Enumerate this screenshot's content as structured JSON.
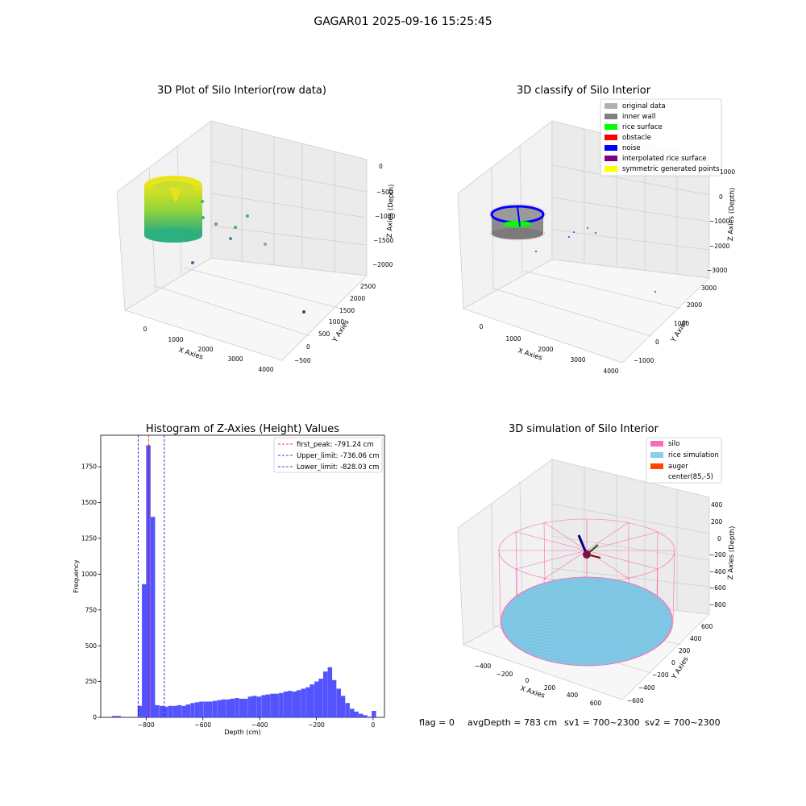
{
  "figure_title": "GAGAR01 2025-09-16 15:25:45",
  "footer": {
    "flag": "flag = 0",
    "avg_depth": "avgDepth = 783 cm",
    "sv1": "sv1 = 700~2300",
    "sv2": "sv2 = 700~2300"
  },
  "colors": {
    "histogram_bar": "#4b4bff",
    "first_peak_line": "#ff0000",
    "limit_line": "#0000cc",
    "silo": "#ff69b4",
    "rice": "#87ceeb",
    "auger": "#ff4500",
    "wall_gray": "#888888",
    "rice_green": "#00ff00",
    "noise_blue": "#0000ff",
    "interp_purple": "#800080",
    "sym_yellow": "#ffff00"
  },
  "chart_data": [
    {
      "type": "scatter3d",
      "title": "3D Plot of Silo Interior(row data)",
      "xlabel": "X Axies",
      "ylabel": "Y Axies",
      "zlabel": "Z Axies (Depth)",
      "x_ticks": [
        "0",
        "1000",
        "2000",
        "3000",
        "4000"
      ],
      "y_ticks": [
        "−500",
        "0",
        "500",
        "1000",
        "1500",
        "2000",
        "2500"
      ],
      "z_ticks": [
        "0",
        "−500",
        "−1000",
        "−1500",
        "−2000"
      ],
      "colormap": "viridis"
    },
    {
      "type": "scatter3d",
      "title": "3D classify of Silo Interior",
      "xlabel": "X Axies",
      "ylabel": "Y Axies",
      "zlabel": "Z Axies (Depth)",
      "x_ticks": [
        "0",
        "1000",
        "2000",
        "3000",
        "4000"
      ],
      "y_ticks": [
        "−1000",
        "0",
        "1000",
        "2000",
        "3000"
      ],
      "z_ticks": [
        "1000",
        "0",
        "−1000",
        "−2000",
        "−3000"
      ],
      "legend": [
        {
          "label": "original data",
          "color": "#b0b0b0"
        },
        {
          "label": "inner wall",
          "color": "#808080"
        },
        {
          "label": "rice surface",
          "color": "#00ff00"
        },
        {
          "label": "obstacle",
          "color": "#ff0000"
        },
        {
          "label": "noise",
          "color": "#0000ff"
        },
        {
          "label": "interpolated rice surface",
          "color": "#800080"
        },
        {
          "label": "symmetric generated points",
          "color": "#ffff00"
        }
      ],
      "legend_position": "top-right"
    },
    {
      "type": "bar",
      "title": "Histogram of Z-Axies (Height) Values",
      "xlabel": "Depth (cm)",
      "ylabel": "Frequency",
      "xlim": [
        -960,
        40
      ],
      "ylim": [
        0,
        1970
      ],
      "x_ticks": [
        -800,
        -600,
        -400,
        -200,
        0
      ],
      "y_ticks": [
        0,
        250,
        500,
        750,
        1000,
        1250,
        1500,
        1750
      ],
      "bin_width": 15.6,
      "bins": [
        [
          -920,
          10
        ],
        [
          -905,
          10
        ],
        [
          -890,
          0
        ],
        [
          -875,
          0
        ],
        [
          -860,
          0
        ],
        [
          -845,
          0
        ],
        [
          -830,
          80
        ],
        [
          -815,
          930
        ],
        [
          -800,
          1900
        ],
        [
          -784,
          1400
        ],
        [
          -769,
          85
        ],
        [
          -753,
          80
        ],
        [
          -738,
          75
        ],
        [
          -722,
          80
        ],
        [
          -706,
          80
        ],
        [
          -691,
          85
        ],
        [
          -675,
          80
        ],
        [
          -660,
          90
        ],
        [
          -644,
          100
        ],
        [
          -628,
          105
        ],
        [
          -613,
          110
        ],
        [
          -597,
          110
        ],
        [
          -582,
          110
        ],
        [
          -566,
          115
        ],
        [
          -550,
          120
        ],
        [
          -535,
          125
        ],
        [
          -519,
          125
        ],
        [
          -504,
          130
        ],
        [
          -488,
          135
        ],
        [
          -472,
          130
        ],
        [
          -457,
          130
        ],
        [
          -441,
          145
        ],
        [
          -426,
          150
        ],
        [
          -410,
          145
        ],
        [
          -394,
          155
        ],
        [
          -379,
          160
        ],
        [
          -363,
          165
        ],
        [
          -348,
          165
        ],
        [
          -332,
          170
        ],
        [
          -316,
          180
        ],
        [
          -301,
          185
        ],
        [
          -285,
          180
        ],
        [
          -270,
          190
        ],
        [
          -254,
          200
        ],
        [
          -238,
          210
        ],
        [
          -223,
          230
        ],
        [
          -207,
          250
        ],
        [
          -192,
          270
        ],
        [
          -176,
          320
        ],
        [
          -160,
          350
        ],
        [
          -145,
          260
        ],
        [
          -129,
          200
        ],
        [
          -114,
          150
        ],
        [
          -98,
          100
        ],
        [
          -82,
          60
        ],
        [
          -67,
          40
        ],
        [
          -51,
          25
        ],
        [
          -36,
          15
        ],
        [
          -20,
          5
        ],
        [
          -5,
          45
        ]
      ],
      "vlines": [
        {
          "label": "first_peak: -791.24 cm",
          "x": -791.24,
          "color": "#ff0000"
        },
        {
          "label": "Upper_limit: -736.06 cm",
          "x": -736.06,
          "color": "#0000cc"
        },
        {
          "label": "Lower_limit: -828.03 cm",
          "x": -828.03,
          "color": "#0000cc"
        }
      ],
      "legend_position": "top-right"
    },
    {
      "type": "surface3d",
      "title": "3D simulation of Silo Interior",
      "xlabel": "X Axies",
      "ylabel": "Y Axies",
      "zlabel": "Z Axies (Depth)",
      "x_ticks": [
        "−400",
        "−200",
        "0",
        "200",
        "400",
        "600"
      ],
      "y_ticks": [
        "−600",
        "−400",
        "−200",
        "0",
        "200",
        "400",
        "600"
      ],
      "z_ticks": [
        "400",
        "200",
        "0",
        "−200",
        "−400",
        "−600",
        "−800"
      ],
      "legend": [
        {
          "label": "silo",
          "color": "#ff69b4"
        },
        {
          "label": "rice simulation",
          "color": "#87ceeb"
        },
        {
          "label": "auger",
          "color": "#ff4500"
        },
        {
          "label": "center(85,-5)",
          "color": ""
        }
      ],
      "legend_position": "top-right"
    }
  ]
}
